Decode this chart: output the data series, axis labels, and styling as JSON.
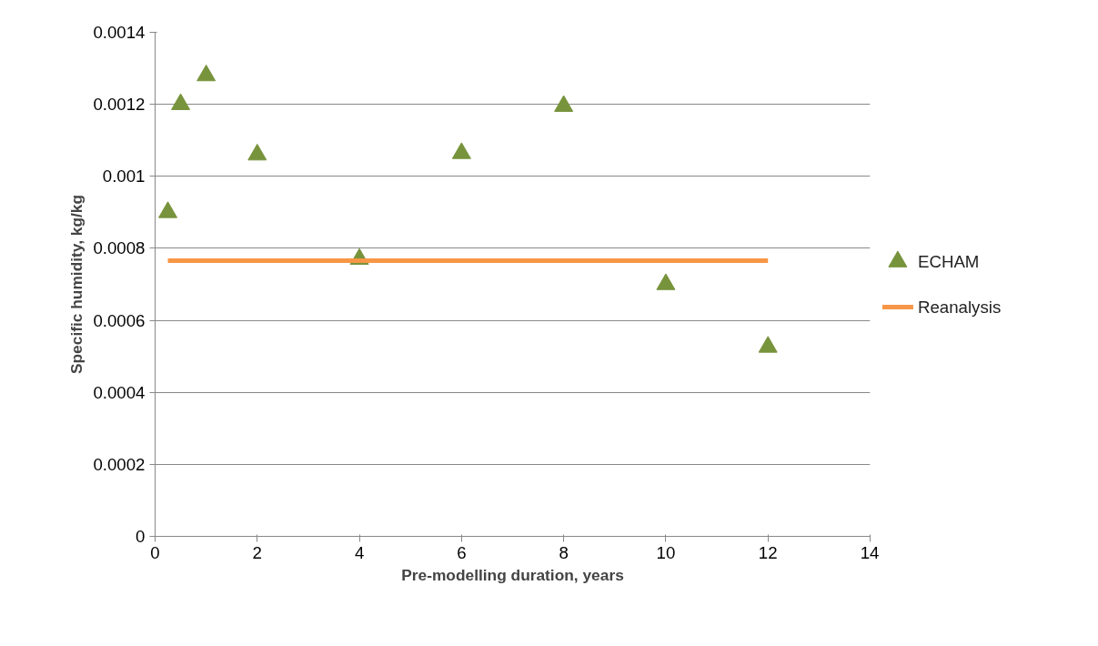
{
  "chart_data": {
    "type": "scatter",
    "xlabel": "Pre-modelling duration, years",
    "ylabel": "Specific humidity, kg/kg",
    "xlim": [
      0,
      14
    ],
    "ylim": [
      0,
      0.0014
    ],
    "xticks": [
      0,
      2,
      4,
      6,
      8,
      10,
      12,
      14
    ],
    "yticks": [
      0,
      {
        "value": 0.0002,
        "label": "0.0002"
      },
      {
        "value": 0.0004,
        "label": "0.0004"
      },
      {
        "value": 0.0006,
        "label": "0.0006"
      },
      {
        "value": 0.0008,
        "label": "0.0008"
      },
      {
        "value": 0.001,
        "label": "0.001"
      },
      {
        "value": 0.0012,
        "label": "0.0012"
      },
      {
        "value": 0.0014,
        "label": "0.0014"
      }
    ],
    "grid": "y",
    "legend": "right",
    "series": [
      {
        "name": "ECHAM",
        "color": "#77933c",
        "marker": "triangle",
        "x": [
          0.25,
          0.5,
          1,
          2,
          4,
          6,
          8,
          10,
          12
        ],
        "values": [
          0.0009,
          0.0012,
          0.00128,
          0.00106,
          0.00077,
          0.001064,
          0.001195,
          0.0007,
          0.000526
        ]
      },
      {
        "name": "Reanalysis",
        "color": "#f79646",
        "type": "line",
        "x": [
          0.25,
          12
        ],
        "values": [
          0.000766,
          0.000766
        ]
      }
    ]
  }
}
